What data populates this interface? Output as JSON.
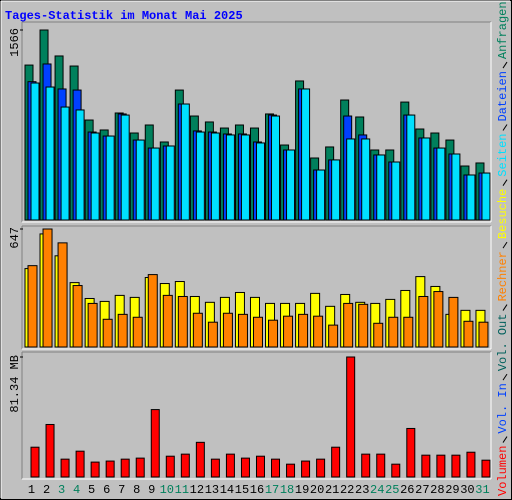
{
  "chart_data": [
    {
      "type": "bar",
      "title": "Tages-Statistik im Monat Mai 2025",
      "ylim": [
        0,
        1566
      ],
      "yticks": [
        1566
      ],
      "series": [
        {
          "name": "Anfragen",
          "color": "#00805c",
          "values": [
            1277,
            1566,
            1352,
            1269,
            824,
            742,
            882,
            717,
            783,
            643,
            1071,
            857,
            808,
            758,
            783,
            758,
            874,
            618,
            1146,
            511,
            602,
            989,
            849,
            577,
            577,
            972,
            750,
            717,
            659,
            445,
            470
          ]
        },
        {
          "name": "Dateien",
          "color": "#0040ff",
          "values": [
            1140,
            1286,
            1080,
            1071,
            725,
            692,
            874,
            659,
            593,
            610,
            956,
            734,
            725,
            709,
            709,
            643,
            865,
            577,
            1080,
            412,
            495,
            857,
            701,
            536,
            478,
            865,
            676,
            593,
            544,
            371,
            387
          ]
        },
        {
          "name": "Seiten",
          "color": "#00e0ff",
          "values": [
            1129,
            1096,
            931,
            907,
            717,
            692,
            865,
            659,
            593,
            610,
            956,
            725,
            717,
            701,
            701,
            635,
            857,
            577,
            1080,
            412,
            495,
            668,
            668,
            536,
            478,
            865,
            676,
            593,
            544,
            371,
            387
          ]
        }
      ]
    },
    {
      "type": "bar",
      "ylim": [
        0,
        647
      ],
      "yticks": [
        647
      ],
      "series": [
        {
          "name": "Besuche",
          "color": "#ffff00",
          "values": [
            430,
            620,
            500,
            353,
            266,
            250,
            283,
            272,
            381,
            348,
            359,
            277,
            245,
            272,
            299,
            272,
            239,
            239,
            239,
            294,
            223,
            288,
            245,
            239,
            261,
            310,
            386,
            332,
            179,
            201,
            201
          ]
        },
        {
          "name": "Rechner",
          "color": "#ff8000",
          "values": [
            446,
            647,
            571,
            337,
            239,
            152,
            179,
            163,
            397,
            283,
            277,
            185,
            136,
            185,
            179,
            163,
            147,
            169,
            179,
            169,
            120,
            239,
            234,
            130,
            163,
            163,
            277,
            304,
            272,
            141,
            136
          ]
        }
      ]
    },
    {
      "type": "bar",
      "ylim": [
        0,
        81.34
      ],
      "yticks": [
        {
          "value": 81.34,
          "label": "81.34 MB"
        }
      ],
      "categories": [
        "1",
        "2",
        "3",
        "4",
        "5",
        "6",
        "7",
        "8",
        "9",
        "10",
        "11",
        "12",
        "13",
        "14",
        "15",
        "16",
        "17",
        "18",
        "19",
        "20",
        "21",
        "22",
        "23",
        "24",
        "25",
        "26",
        "27",
        "28",
        "29",
        "30",
        "31"
      ],
      "category_colors": [
        "#000000",
        "#000000",
        "#00805c",
        "#00805c",
        "#000000",
        "#000000",
        "#000000",
        "#000000",
        "#000000",
        "#00805c",
        "#00805c",
        "#000000",
        "#000000",
        "#000000",
        "#000000",
        "#000000",
        "#00805c",
        "#00805c",
        "#000000",
        "#000000",
        "#000000",
        "#000000",
        "#000000",
        "#00805c",
        "#00805c",
        "#000000",
        "#000000",
        "#000000",
        "#000000",
        "#000000",
        "#00805c"
      ],
      "series": [
        {
          "name": "Vol. Out",
          "color": "#00605c",
          "values": [
            0,
            0,
            0,
            0,
            0,
            0,
            0,
            0,
            0,
            0,
            0,
            0,
            0,
            0,
            0,
            0,
            0,
            0,
            0,
            0,
            0,
            0,
            0,
            0,
            0,
            0,
            0,
            0,
            0,
            0,
            0
          ]
        },
        {
          "name": "Vol. In",
          "color": "#0040ff",
          "values": [
            0,
            0,
            0,
            0,
            0,
            0,
            0,
            0,
            0,
            0,
            0,
            0,
            0,
            0,
            0,
            0,
            0,
            0,
            0,
            0,
            0,
            0,
            0,
            0,
            0,
            0,
            0,
            0,
            0,
            0,
            0
          ]
        },
        {
          "name": "Volumen",
          "color": "#ff0000",
          "values": [
            20.2,
            35.6,
            12.1,
            17.5,
            10.1,
            10.8,
            12.1,
            12.8,
            45.7,
            14.1,
            15.5,
            23.5,
            12.1,
            15.5,
            12.8,
            14.1,
            12.1,
            8.7,
            10.8,
            12.1,
            20.2,
            81.34,
            15.5,
            15.5,
            8.7,
            32.9,
            14.8,
            14.8,
            14.8,
            16.8,
            11.4
          ]
        }
      ]
    }
  ]
}
